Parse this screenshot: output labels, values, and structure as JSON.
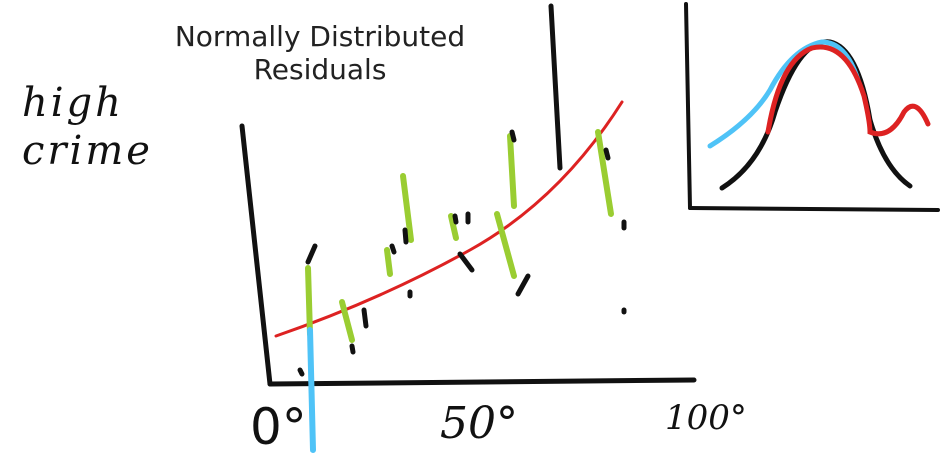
{
  "title": "Normally Distributed\nResiduals",
  "handwritten_label": {
    "line1": "high",
    "line2": "crime"
  },
  "x_tick_labels": [
    "0°",
    "50°",
    "100°"
  ],
  "colors": {
    "axes": "#111111",
    "regression_line": "#dd2222",
    "residuals": "#9acd32",
    "highlight": "#4fc3f7",
    "curve": "#111111"
  }
}
